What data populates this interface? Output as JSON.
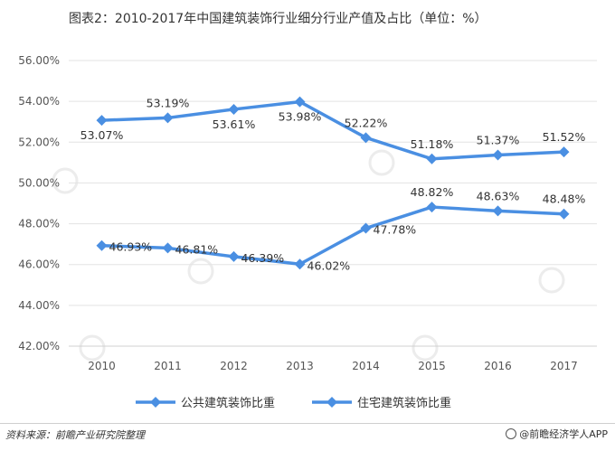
{
  "title": "图表2：2010-2017年中国建筑装饰行业细分行业产值及占比（单位：%）",
  "source": "资料来源：前瞻产业研究院整理",
  "brand": "@前瞻经济学人APP",
  "chart_data": {
    "type": "line",
    "title": "图表2：2010-2017年中国建筑装饰行业细分行业产值及占比（单位：%）",
    "x": [
      "2010",
      "2011",
      "2012",
      "2013",
      "2014",
      "2015",
      "2016",
      "2017"
    ],
    "ylim": [
      42,
      56
    ],
    "yticks": [
      "42.00%",
      "44.00%",
      "46.00%",
      "48.00%",
      "50.00%",
      "52.00%",
      "54.00%",
      "56.00%"
    ],
    "ytick_values": [
      42,
      44,
      46,
      48,
      50,
      52,
      54,
      56
    ],
    "grid": true,
    "legend": "bottom",
    "series": [
      {
        "name": "公共建筑装饰比重",
        "color": "#4a8fe2",
        "marker": "diamond",
        "values": [
          53.07,
          53.19,
          53.61,
          53.98,
          52.22,
          51.18,
          51.37,
          51.52
        ],
        "labels": [
          "53.07%",
          "53.19%",
          "53.61%",
          "53.98%",
          "52.22%",
          "51.18%",
          "51.37%",
          "51.52%"
        ],
        "label_pos": [
          "below",
          "above",
          "below",
          "below",
          "above",
          "above",
          "above",
          "above"
        ]
      },
      {
        "name": "住宅建筑装饰比重",
        "color": "#4a8fe2",
        "marker": "diamond",
        "values": [
          46.93,
          46.81,
          46.39,
          46.02,
          47.78,
          48.82,
          48.63,
          48.48
        ],
        "labels": [
          "46.93%",
          "46.81%",
          "46.39%",
          "46.02%",
          "47.78%",
          "48.82%",
          "48.63%",
          "48.48%"
        ],
        "label_pos": [
          "right",
          "right",
          "right",
          "right",
          "right",
          "above",
          "above",
          "above"
        ]
      }
    ]
  }
}
